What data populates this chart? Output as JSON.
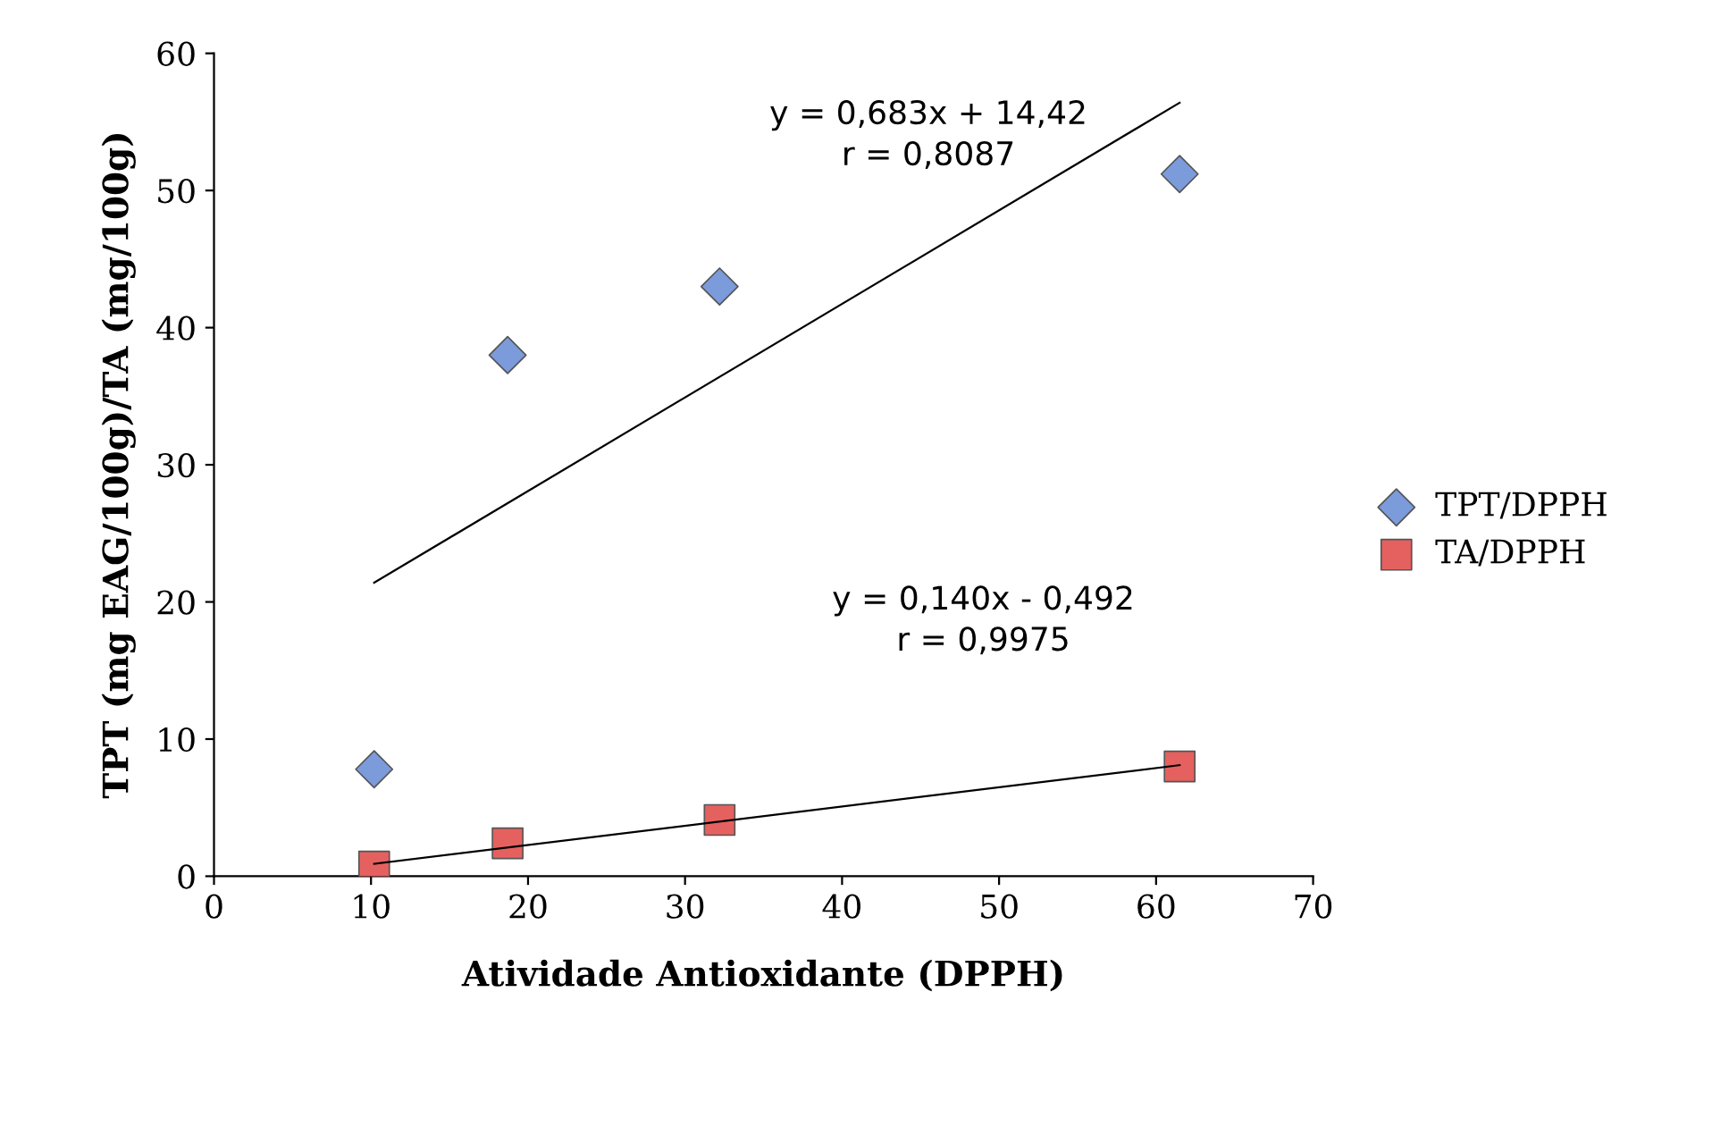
{
  "chart_data": {
    "type": "scatter",
    "xlabel": "Atividade Antioxidante (DPPH)",
    "ylabel": "TPT (mg EAG/100g)/TA (mg/100g)",
    "xlim": [
      0,
      70
    ],
    "xticks": [
      0,
      10,
      20,
      30,
      40,
      50,
      60,
      70
    ],
    "ylim": [
      0,
      60
    ],
    "yticks": [
      0,
      10,
      20,
      30,
      40,
      50,
      60
    ],
    "grid": false,
    "legend": "right",
    "series": [
      {
        "name": "TPT/DPPH",
        "color": "#7b9bdb",
        "marker": "diamond",
        "x": [
          10.2,
          18.7,
          32.2,
          61.5
        ],
        "values": [
          7.8,
          38,
          43,
          51.2
        ]
      },
      {
        "name": "TA/DPPH",
        "color": "#e5615f",
        "marker": "square",
        "x": [
          10.2,
          18.7,
          32.2,
          61.5
        ],
        "values": [
          0.7,
          2.4,
          4.1,
          8.0
        ]
      },
      {
        "type": "line",
        "color": "#000000",
        "marker": "none",
        "x": [
          10.2,
          61.5
        ],
        "values": [
          21.4,
          56.4
        ]
      },
      {
        "type": "line",
        "color": "#000000",
        "marker": "none",
        "x": [
          10.2,
          61.5
        ],
        "values": [
          0.9,
          8.1
        ]
      }
    ],
    "annotations": [
      "y = 0,683x + 14,42\nr = 0,8087",
      "y = 0,140x - 0,492\nr = 0,9975"
    ]
  }
}
